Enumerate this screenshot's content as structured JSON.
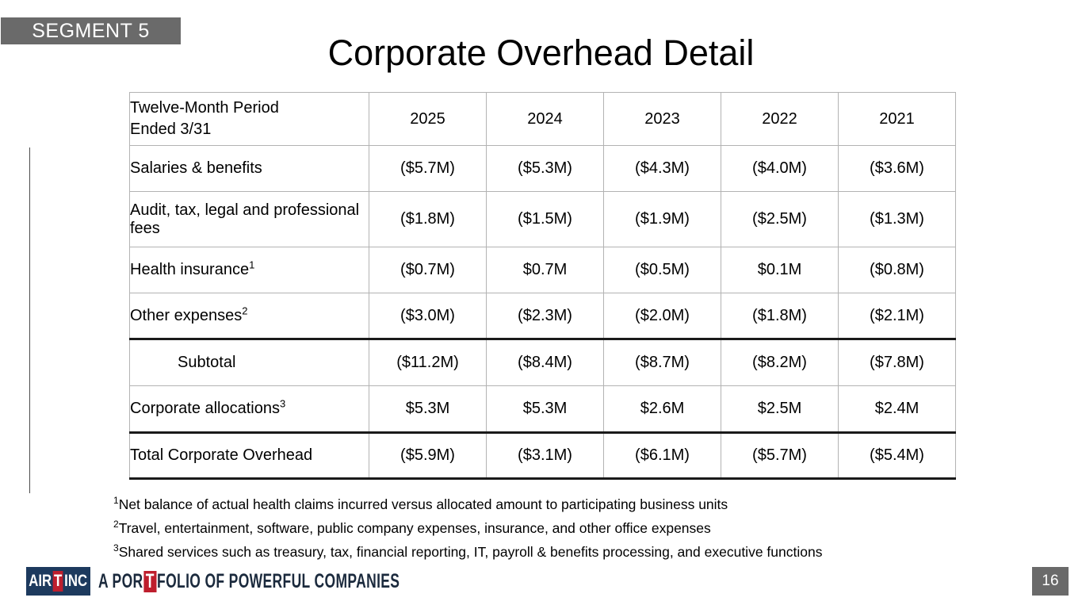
{
  "slide": {
    "segment_label": "SEGMENT 5",
    "title": "Corporate Overhead Detail",
    "page_number": "16"
  },
  "table": {
    "header": {
      "period_label": "Twelve-Month Period\nEnded 3/31",
      "years": [
        "2025",
        "2024",
        "2023",
        "2022",
        "2021"
      ]
    },
    "rows": [
      {
        "label": "Salaries & benefits",
        "sup": "",
        "values": [
          "($5.7M)",
          "($5.3M)",
          "($4.3M)",
          "($4.0M)",
          "($3.6M)"
        ]
      },
      {
        "label": "Audit, tax, legal and professional fees",
        "sup": "",
        "values": [
          "($1.8M)",
          "($1.5M)",
          "($1.9M)",
          "($2.5M)",
          "($1.3M)"
        ]
      },
      {
        "label": "Health insurance",
        "sup": "1",
        "values": [
          "($0.7M)",
          "$0.7M",
          "($0.5M)",
          "$0.1M",
          "($0.8M)"
        ]
      },
      {
        "label": "Other expenses",
        "sup": "2",
        "values": [
          "($3.0M)",
          "($2.3M)",
          "($2.0M)",
          "($1.8M)",
          "($2.1M)"
        ]
      },
      {
        "label": "Subtotal",
        "sup": "",
        "values": [
          "($11.2M)",
          "($8.4M)",
          "($8.7M)",
          "($8.2M)",
          "($7.8M)"
        ]
      },
      {
        "label": "Corporate allocations",
        "sup": "3",
        "values": [
          "$5.3M",
          "$5.3M",
          "$2.6M",
          "$2.5M",
          "$2.4M"
        ]
      },
      {
        "label": "Total Corporate Overhead",
        "sup": "",
        "values": [
          "($5.9M)",
          "($3.1M)",
          "($6.1M)",
          "($5.7M)",
          "($5.4M)"
        ]
      }
    ]
  },
  "footnotes": [
    {
      "sup": "1",
      "text": "Net balance of actual health claims incurred versus allocated amount to participating business units"
    },
    {
      "sup": "2",
      "text": "Travel, entertainment, software, public company expenses, insurance, and other office expenses"
    },
    {
      "sup": "3",
      "text": "Shared services such as treasury, tax, financial reporting, IT, payroll & benefits processing, and executive functions"
    }
  ],
  "footer": {
    "logo": {
      "part1": "AIR",
      "t": "T",
      "part2": "INC"
    },
    "tagline": {
      "part1": "A POR",
      "t": "T",
      "part2": "FOLIO OF POWERFUL COMPANIES"
    }
  },
  "colors": {
    "segment_box_gray": "#6a6a6a",
    "table_border_gray": "#b3b3b3",
    "thick_rule_black": "#1a1a1a",
    "logo_navy": "#1d3a5e",
    "logo_red": "#be1e2d"
  }
}
